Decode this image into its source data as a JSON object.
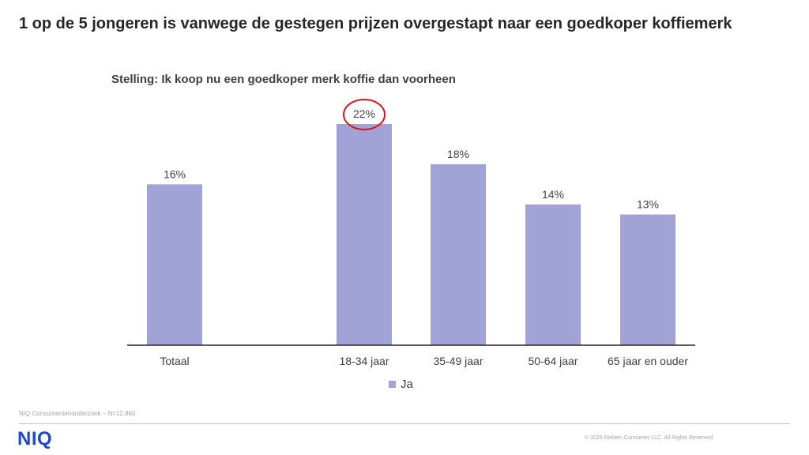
{
  "slide": {
    "title": "1 op de 5 jongeren is vanwege de gestegen prijzen overgestapt naar een goedkoper koffiemerk",
    "source": "NIQ Consumentenonderzoek – N=12.860",
    "logo": "NIQ",
    "copyright": "© 2025 Nielsen Consumer LLC. All Rights Reserved."
  },
  "colors": {
    "bar": "#a1a3d6",
    "highlight_circle": "#e0101a",
    "axis": "#262626",
    "logo": "#1f48d1"
  },
  "chart_data": {
    "type": "bar",
    "title": "Stelling: Ik koop nu een goedkoper merk koffie dan voorheen",
    "categories": [
      "Totaal",
      "18-34 jaar",
      "35-49 jaar",
      "50-64 jaar",
      "65 jaar en ouder"
    ],
    "series": [
      {
        "name": "Ja",
        "values": [
          16,
          22,
          18,
          14,
          13
        ],
        "labels": [
          "16%",
          "22%",
          "18%",
          "14%",
          "13%"
        ]
      }
    ],
    "highlighted_category": "18-34 jaar",
    "ylim": [
      0,
      22
    ],
    "grid": false,
    "legend": "bottom-center",
    "xlabel": "",
    "ylabel": ""
  }
}
